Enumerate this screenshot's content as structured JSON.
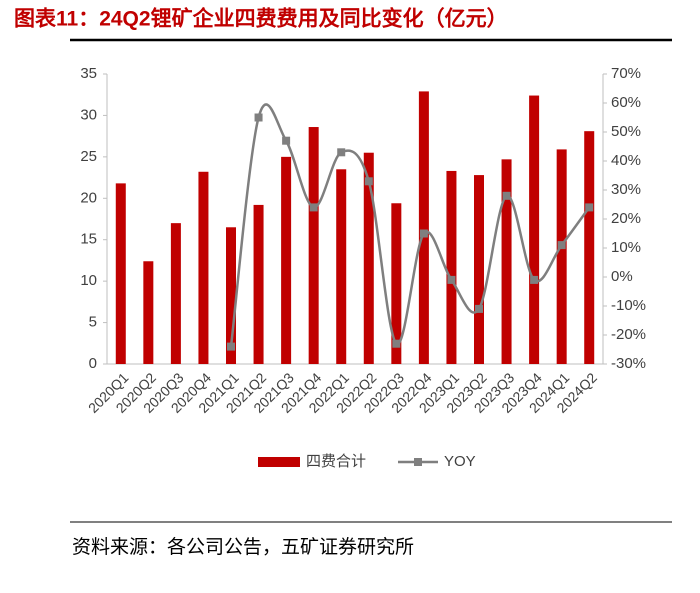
{
  "chart_data": {
    "type": "bar_line",
    "title": "图表11：24Q2锂矿企业四费费用及同比变化（亿元）",
    "source": "资料来源：各公司公告，五矿证券研究所",
    "categories": [
      "2020Q1",
      "2020Q2",
      "2020Q3",
      "2020Q4",
      "2021Q1",
      "2021Q2",
      "2021Q3",
      "2021Q4",
      "2022Q1",
      "2022Q2",
      "2022Q3",
      "2022Q4",
      "2023Q1",
      "2023Q2",
      "2023Q3",
      "2023Q4",
      "2024Q1",
      "2024Q2"
    ],
    "series": [
      {
        "name": "四费合计",
        "color": "#c00000",
        "type": "bar",
        "values": [
          21.8,
          12.4,
          17.0,
          23.2,
          16.5,
          19.2,
          25.0,
          28.6,
          23.5,
          25.5,
          19.4,
          32.9,
          23.3,
          22.8,
          24.7,
          32.4,
          25.9,
          28.1
        ]
      },
      {
        "name": "YOY",
        "color": "#7f7f7f",
        "type": "line",
        "axis": "y2",
        "values": [
          null,
          null,
          null,
          null,
          -24,
          55,
          47,
          24,
          43,
          33,
          -23,
          15,
          -1,
          -11,
          28,
          -1,
          11,
          24
        ]
      }
    ],
    "ylim": [
      0,
      35
    ],
    "yticks": [
      0,
      5,
      10,
      15,
      20,
      25,
      30,
      35
    ],
    "y2lim": [
      -30,
      70
    ],
    "y2ticks": [
      {
        "value": -30,
        "label": "-30%"
      },
      {
        "value": -20,
        "label": "-20%"
      },
      {
        "value": -10,
        "label": "-10%"
      },
      {
        "value": 0,
        "label": "0%"
      },
      {
        "value": 10,
        "label": "10%"
      },
      {
        "value": 20,
        "label": "20%"
      },
      {
        "value": 30,
        "label": "30%"
      },
      {
        "value": 40,
        "label": "40%"
      },
      {
        "value": 50,
        "label": "50%"
      },
      {
        "value": 60,
        "label": "60%"
      },
      {
        "value": 70,
        "label": "70%"
      }
    ],
    "legend": "bottom"
  }
}
